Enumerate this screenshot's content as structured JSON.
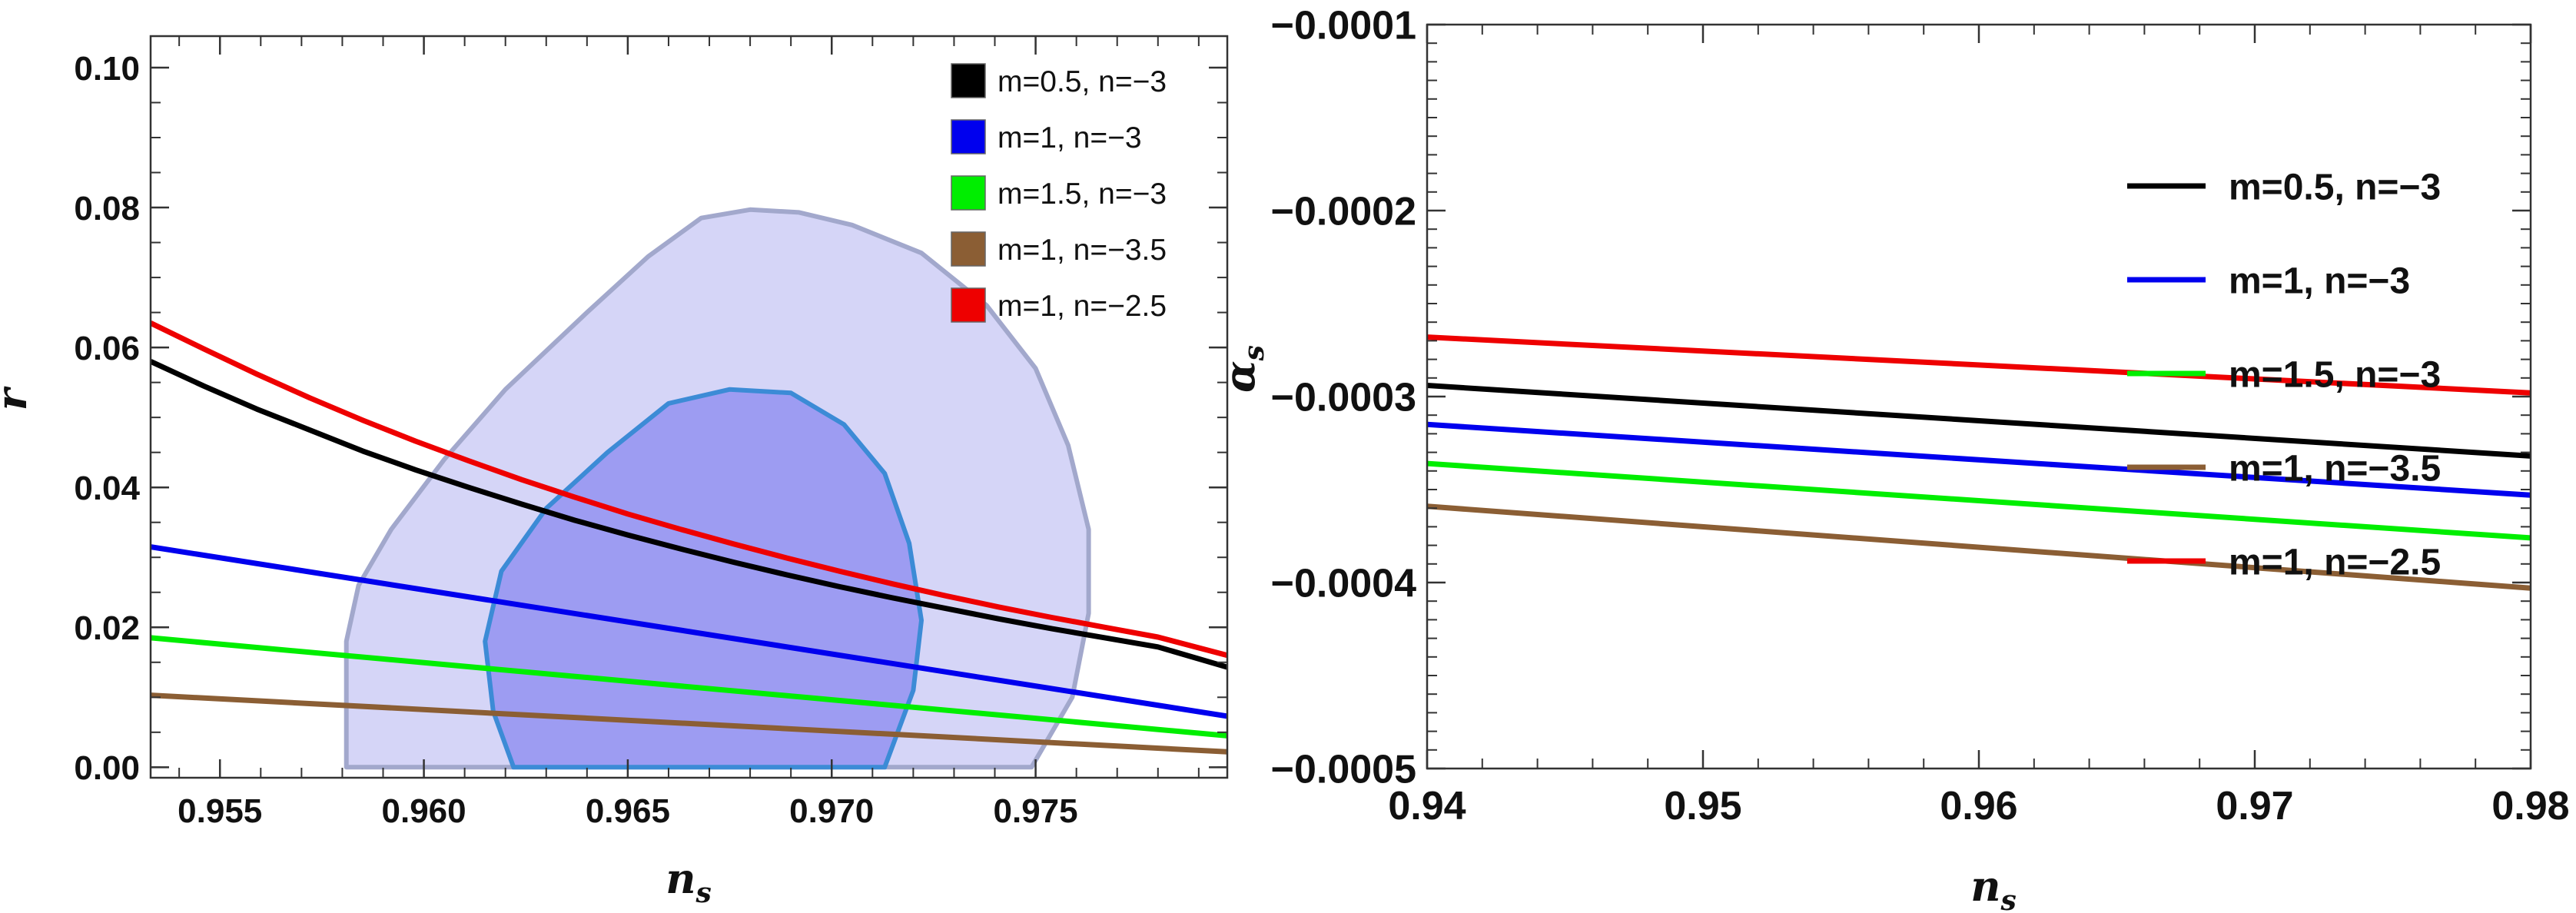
{
  "chart_data": [
    {
      "type": "line",
      "xlabel": "n",
      "xlabel_sub": "s",
      "ylabel": "r",
      "xlim": [
        0.9533,
        0.9797
      ],
      "ylim": [
        -0.0015,
        0.1045
      ],
      "x_ticks": [
        0.955,
        0.96,
        0.965,
        0.97,
        0.975
      ],
      "x_tick_labels": [
        "0.955",
        "0.960",
        "0.965",
        "0.970",
        "0.975"
      ],
      "y_ticks": [
        0.0,
        0.02,
        0.04,
        0.06,
        0.08,
        0.1
      ],
      "y_tick_labels": [
        "0.00",
        "0.02",
        "0.04",
        "0.06",
        "0.08",
        "0.10"
      ],
      "grid": false,
      "legend_position": "top-right",
      "legend_style": "swatch",
      "contours": [
        {
          "level": "outer",
          "fill": "#d5d5f7",
          "stroke": "#a2a8cc",
          "points": [
            [
              0.9581,
              0.0
            ],
            [
              0.9581,
              0.018
            ],
            [
              0.9584,
              0.026
            ],
            [
              0.9592,
              0.034
            ],
            [
              0.9605,
              0.044
            ],
            [
              0.962,
              0.054
            ],
            [
              0.964,
              0.065
            ],
            [
              0.9655,
              0.073
            ],
            [
              0.9668,
              0.0785
            ],
            [
              0.968,
              0.0797
            ],
            [
              0.9692,
              0.0793
            ],
            [
              0.9705,
              0.0775
            ],
            [
              0.9722,
              0.0735
            ],
            [
              0.9738,
              0.066
            ],
            [
              0.975,
              0.057
            ],
            [
              0.9758,
              0.046
            ],
            [
              0.9763,
              0.034
            ],
            [
              0.9763,
              0.022
            ],
            [
              0.9759,
              0.01
            ],
            [
              0.9749,
              0.0
            ]
          ]
        },
        {
          "level": "inner",
          "fill": "#9d9cf2",
          "stroke": "#3c8bd6",
          "points": [
            [
              0.9622,
              0.0
            ],
            [
              0.9617,
              0.008
            ],
            [
              0.9615,
              0.018
            ],
            [
              0.9619,
              0.028
            ],
            [
              0.963,
              0.037
            ],
            [
              0.9645,
              0.045
            ],
            [
              0.966,
              0.052
            ],
            [
              0.9675,
              0.054
            ],
            [
              0.969,
              0.0535
            ],
            [
              0.9703,
              0.049
            ],
            [
              0.9713,
              0.042
            ],
            [
              0.9719,
              0.032
            ],
            [
              0.9722,
              0.021
            ],
            [
              0.972,
              0.011
            ],
            [
              0.9713,
              0.0
            ]
          ]
        }
      ],
      "series": [
        {
          "name": "m=0.5, n=−3",
          "color": "#000000",
          "x": [
            0.9533,
            0.9546,
            0.9559,
            0.9572,
            0.9585,
            0.9598,
            0.9611,
            0.9624,
            0.9637,
            0.965,
            0.9663,
            0.9676,
            0.9689,
            0.9702,
            0.9715,
            0.9728,
            0.9741,
            0.9754,
            0.9767,
            0.978,
            0.9797
          ],
          "y": [
            0.058,
            0.0545,
            0.0512,
            0.0482,
            0.0452,
            0.0425,
            0.04,
            0.0376,
            0.0353,
            0.0332,
            0.0312,
            0.0293,
            0.0275,
            0.0258,
            0.0242,
            0.0227,
            0.0212,
            0.0198,
            0.0185,
            0.0172,
            0.0143
          ]
        },
        {
          "name": "m=1, n=−3",
          "color": "#0000ee",
          "x": [
            0.9533,
            0.9797
          ],
          "y": [
            0.0315,
            0.0073
          ]
        },
        {
          "name": "m=1.5, n=−3",
          "color": "#00ee00",
          "x": [
            0.9533,
            0.9797
          ],
          "y": [
            0.0185,
            0.0045
          ]
        },
        {
          "name": "m=1, n=−3.5",
          "color": "#8b5e34",
          "x": [
            0.9533,
            0.9797
          ],
          "y": [
            0.0103,
            0.0022
          ]
        },
        {
          "name": "m=1, n=−2.5",
          "color": "#ee0000",
          "x": [
            0.9533,
            0.9546,
            0.9559,
            0.9572,
            0.9585,
            0.9598,
            0.9611,
            0.9624,
            0.9637,
            0.965,
            0.9663,
            0.9676,
            0.9689,
            0.9702,
            0.9715,
            0.9728,
            0.9741,
            0.9754,
            0.9767,
            0.978,
            0.9797
          ],
          "y": [
            0.0635,
            0.0598,
            0.0562,
            0.0528,
            0.0496,
            0.0466,
            0.0438,
            0.0411,
            0.0386,
            0.0362,
            0.034,
            0.0319,
            0.0299,
            0.028,
            0.0262,
            0.0245,
            0.0229,
            0.0214,
            0.02,
            0.0186,
            0.016
          ]
        }
      ]
    },
    {
      "type": "line",
      "xlabel": "n",
      "xlabel_sub": "s",
      "ylabel": "α",
      "ylabel_sub": "s",
      "xlim": [
        0.94,
        0.98
      ],
      "ylim": [
        -0.0005,
        -0.0001
      ],
      "x_ticks": [
        0.94,
        0.95,
        0.96,
        0.97,
        0.98
      ],
      "x_tick_labels": [
        "0.94",
        "0.95",
        "0.96",
        "0.97",
        "0.98"
      ],
      "y_ticks": [
        -0.0001,
        -0.0002,
        -0.0003,
        -0.0004,
        -0.0005
      ],
      "y_tick_labels": [
        "−0.0001",
        "−0.0002",
        "−0.0003",
        "−0.0004",
        "−0.0005"
      ],
      "grid": false,
      "legend_position": "right",
      "legend_style": "line",
      "series": [
        {
          "name": "m=0.5, n=−3",
          "color": "#000000",
          "x": [
            0.94,
            0.98
          ],
          "y": [
            -0.000294,
            -0.000332
          ]
        },
        {
          "name": "m=1, n=−3",
          "color": "#0000ee",
          "x": [
            0.94,
            0.98
          ],
          "y": [
            -0.000315,
            -0.000353
          ]
        },
        {
          "name": "m=1.5, n=−3",
          "color": "#00ee00",
          "x": [
            0.94,
            0.98
          ],
          "y": [
            -0.000336,
            -0.000376
          ]
        },
        {
          "name": "m=1, n=−3.5",
          "color": "#8b5e34",
          "x": [
            0.94,
            0.98
          ],
          "y": [
            -0.000359,
            -0.000403
          ]
        },
        {
          "name": "m=1, n=−2.5",
          "color": "#ee0000",
          "x": [
            0.94,
            0.98
          ],
          "y": [
            -0.000268,
            -0.000298
          ]
        }
      ]
    }
  ]
}
